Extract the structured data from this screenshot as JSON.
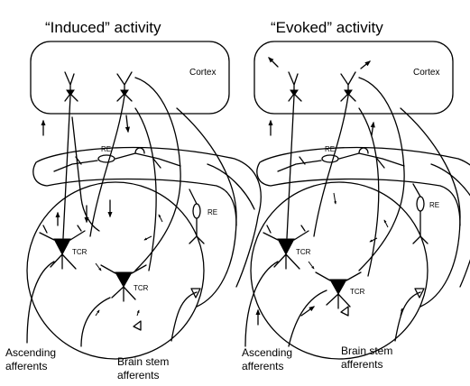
{
  "panels": [
    {
      "title": "“Induced” activity",
      "labels": {
        "cortex": "Cortex",
        "re_top": "RE",
        "re_side": "RE",
        "tcr_left": "TCR",
        "tcr_right": "TCR"
      },
      "footer": {
        "left_line1": "Ascending",
        "left_line2": "afferents",
        "right_line1": "Brain stem",
        "right_line2": "afferents"
      }
    },
    {
      "title": "“Evoked” activity",
      "labels": {
        "cortex": "Cortex",
        "re_top": "RE",
        "re_side": "RE",
        "tcr_left": "TCR",
        "tcr_right": "TCR"
      },
      "footer": {
        "left_line1": "Ascending",
        "left_line2": "afferents",
        "right_line1": "Brain stem",
        "right_line2": "afferents"
      }
    }
  ],
  "colors": {
    "ink": "#000000",
    "background": "#ffffff"
  }
}
